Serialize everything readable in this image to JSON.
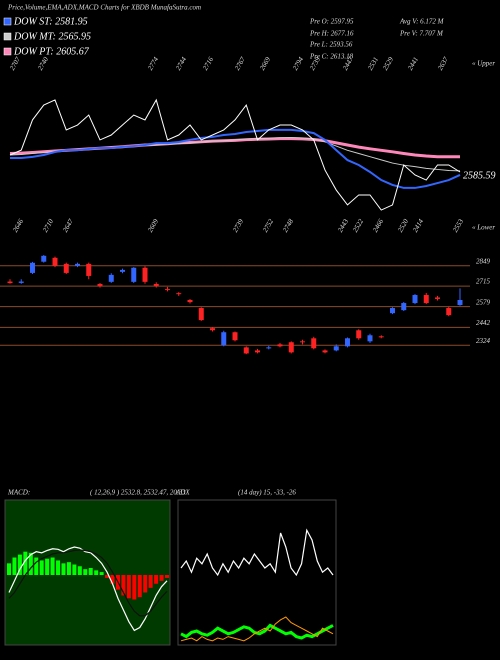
{
  "chart_data": [
    {
      "type": "line",
      "title": "Price,Volume,EMA,ADX,MACD Charts for XBDB MunafaSutra.com",
      "stats": [
        "Pre O: 2597.95",
        "Pre H: 2677.16",
        "Pre L: 2593.56",
        "Pre C: 2613.18",
        "Avg V: 6.172 M",
        "Pre V: 7.707 M"
      ],
      "upper_labels": [
        "2707",
        "2740",
        "2774",
        "2744",
        "2716",
        "2767",
        "2669",
        "2794",
        "2739",
        "2447",
        "2531",
        "2529",
        "2441",
        "2637"
      ],
      "lower_labels": [
        "2646",
        "2710",
        "2647",
        "2609",
        "2739",
        "2752",
        "2748",
        "2443",
        "2522",
        "2466",
        "2520",
        "2414",
        "2553"
      ],
      "upper_tag": "« Upper",
      "lower_tag": "« Lower",
      "last_label": "2585.59",
      "ylim": [
        2200,
        3000
      ],
      "series": [
        {
          "name": "DOW PT: 2605.67",
          "color": "#ff88bb",
          "width": 3,
          "values": [
            2560,
            2562,
            2565,
            2568,
            2572,
            2575,
            2578,
            2582,
            2585,
            2588,
            2592,
            2596,
            2600,
            2603,
            2606,
            2610,
            2612,
            2615,
            2618,
            2620,
            2622,
            2625,
            2627,
            2628,
            2630,
            2630,
            2629,
            2626,
            2620,
            2610,
            2600,
            2590,
            2582,
            2575,
            2568,
            2560,
            2553,
            2548,
            2545,
            2545,
            2545
          ]
        },
        {
          "name": "DOW MT: 2565.95",
          "color": "#cccccc",
          "width": 1,
          "values": [
            2553,
            2555,
            2560,
            2565,
            2570,
            2575,
            2578,
            2580,
            2584,
            2588,
            2590,
            2594,
            2598,
            2600,
            2604,
            2606,
            2610,
            2614,
            2618,
            2620,
            2624,
            2628,
            2630,
            2632,
            2634,
            2635,
            2633,
            2628,
            2615,
            2595,
            2575,
            2560,
            2545,
            2530,
            2515,
            2505,
            2498,
            2490,
            2485,
            2480,
            2478
          ]
        },
        {
          "name": "DOW ST: 2581.95",
          "color": "#3366ff",
          "width": 2,
          "values": [
            2539,
            2539,
            2544,
            2553,
            2567,
            2576,
            2576,
            2581,
            2586,
            2586,
            2591,
            2595,
            2600,
            2609,
            2609,
            2614,
            2624,
            2633,
            2638,
            2647,
            2652,
            2661,
            2666,
            2671,
            2671,
            2671,
            2666,
            2656,
            2624,
            2576,
            2529,
            2506,
            2473,
            2435,
            2412,
            2398,
            2398,
            2407,
            2421,
            2435,
            2459
          ]
        },
        {
          "color": "#ffffff",
          "width": 1,
          "values": [
            2553,
            2576,
            2718,
            2788,
            2812,
            2671,
            2694,
            2741,
            2624,
            2647,
            2694,
            2741,
            2718,
            2812,
            2624,
            2647,
            2694,
            2624,
            2647,
            2671,
            2718,
            2788,
            2624,
            2671,
            2694,
            2694,
            2671,
            2624,
            2482,
            2388,
            2318,
            2365,
            2365,
            2294,
            2318,
            2506,
            2459,
            2435,
            2506,
            2506,
            2473
          ]
        }
      ]
    },
    {
      "type": "candlestick",
      "up_color": "#3366ff",
      "down_color": "#ff2222",
      "grid_color": "#8a4b2a",
      "ylim": [
        2220,
        2960
      ],
      "yticks": [
        2849,
        2715,
        2579,
        2442,
        2324
      ],
      "open": [
        2745,
        2736,
        2802,
        2876,
        2902,
        2862,
        2849,
        2862,
        2729,
        2743,
        2809,
        2743,
        2836,
        2729,
        2695,
        2668,
        2623,
        2570,
        2437,
        2324,
        2410,
        2310,
        2290,
        2304,
        2330,
        2344,
        2350,
        2370,
        2290,
        2290,
        2317,
        2423,
        2350,
        2383,
        2536,
        2556,
        2603,
        2656,
        2640,
        2570,
        2590
      ],
      "high": [
        2760,
        2760,
        2875,
        2920,
        2910,
        2870,
        2870,
        2870,
        2735,
        2800,
        2830,
        2840,
        2845,
        2740,
        2710,
        2675,
        2630,
        2575,
        2445,
        2420,
        2415,
        2317,
        2300,
        2320,
        2340,
        2350,
        2360,
        2380,
        2297,
        2330,
        2375,
        2430,
        2400,
        2390,
        2575,
        2610,
        2662,
        2670,
        2650,
        2580,
        2700
      ],
      "low": [
        2730,
        2730,
        2795,
        2870,
        2840,
        2795,
        2840,
        2760,
        2705,
        2736,
        2800,
        2735,
        2730,
        2705,
        2680,
        2650,
        2600,
        2485,
        2415,
        2317,
        2350,
        2265,
        2270,
        2297,
        2310,
        2270,
        2330,
        2297,
        2270,
        2284,
        2310,
        2360,
        2340,
        2370,
        2530,
        2550,
        2596,
        2596,
        2620,
        2516,
        2585
      ],
      "close": [
        2735,
        2745,
        2869,
        2915,
        2849,
        2802,
        2862,
        2782,
        2716,
        2789,
        2822,
        2836,
        2743,
        2716,
        2689,
        2663,
        2609,
        2490,
        2423,
        2410,
        2357,
        2270,
        2277,
        2310,
        2317,
        2277,
        2344,
        2304,
        2277,
        2317,
        2370,
        2370,
        2390,
        2377,
        2570,
        2603,
        2656,
        2603,
        2630,
        2523,
        2623
      ]
    },
    {
      "type": "macd",
      "label": "MACD:",
      "params": "( 12,26,9 ) 2532.8, 2532.47, 20.33",
      "background": "#003a00",
      "ylim": [
        -120,
        120
      ],
      "up_color": "#00ff00",
      "down_color": "#ff0000",
      "histogram": [
        20,
        30,
        35,
        40,
        38,
        30,
        25,
        28,
        30,
        25,
        20,
        22,
        18,
        15,
        10,
        12,
        8,
        5,
        -5,
        -15,
        -25,
        -35,
        -40,
        -42,
        -38,
        -30,
        -22,
        -15,
        -10,
        -5
      ],
      "series": [
        {
          "color": "#ffffff",
          "width": 1.2,
          "values": [
            -30,
            -10,
            10,
            25,
            35,
            40,
            38,
            42,
            45,
            44,
            40,
            45,
            48,
            46,
            40,
            38,
            30,
            20,
            5,
            -15,
            -40,
            -60,
            -80,
            -95,
            -90,
            -75,
            -55,
            -35,
            -20,
            -10
          ]
        },
        {
          "color": "#111111",
          "width": 1.2,
          "values": [
            -40,
            -30,
            -15,
            0,
            12,
            22,
            28,
            32,
            36,
            38,
            38,
            40,
            42,
            43,
            42,
            40,
            36,
            30,
            20,
            5,
            -12,
            -30,
            -48,
            -62,
            -70,
            -70,
            -62,
            -50,
            -38,
            -28
          ]
        }
      ]
    },
    {
      "type": "adx",
      "label": "ADX",
      "params": "(14 day) 15, -33, -26",
      "background": "#000000",
      "ylim": [
        0,
        100
      ],
      "series": [
        {
          "color": "#ffffff",
          "width": 1.2,
          "values": [
            55,
            60,
            52,
            62,
            58,
            65,
            55,
            50,
            58,
            52,
            60,
            55,
            62,
            58,
            65,
            60,
            55,
            58,
            52,
            80,
            70,
            55,
            50,
            58,
            82,
            75,
            60,
            52,
            55,
            50
          ]
        },
        {
          "color": "#00ff00",
          "width": 3,
          "values": [
            8,
            6,
            9,
            10,
            8,
            7,
            9,
            12,
            10,
            8,
            9,
            11,
            13,
            12,
            9,
            8,
            10,
            14,
            12,
            10,
            8,
            9,
            6,
            5,
            7,
            6,
            8,
            10,
            12,
            14
          ]
        },
        {
          "color": "#ff9900",
          "width": 1,
          "values": [
            3,
            4,
            5,
            3,
            6,
            4,
            3,
            5,
            4,
            6,
            5,
            4,
            3,
            5,
            8,
            10,
            12,
            10,
            15,
            18,
            20,
            16,
            14,
            12,
            10,
            8,
            6,
            12,
            10,
            8
          ]
        }
      ]
    }
  ]
}
